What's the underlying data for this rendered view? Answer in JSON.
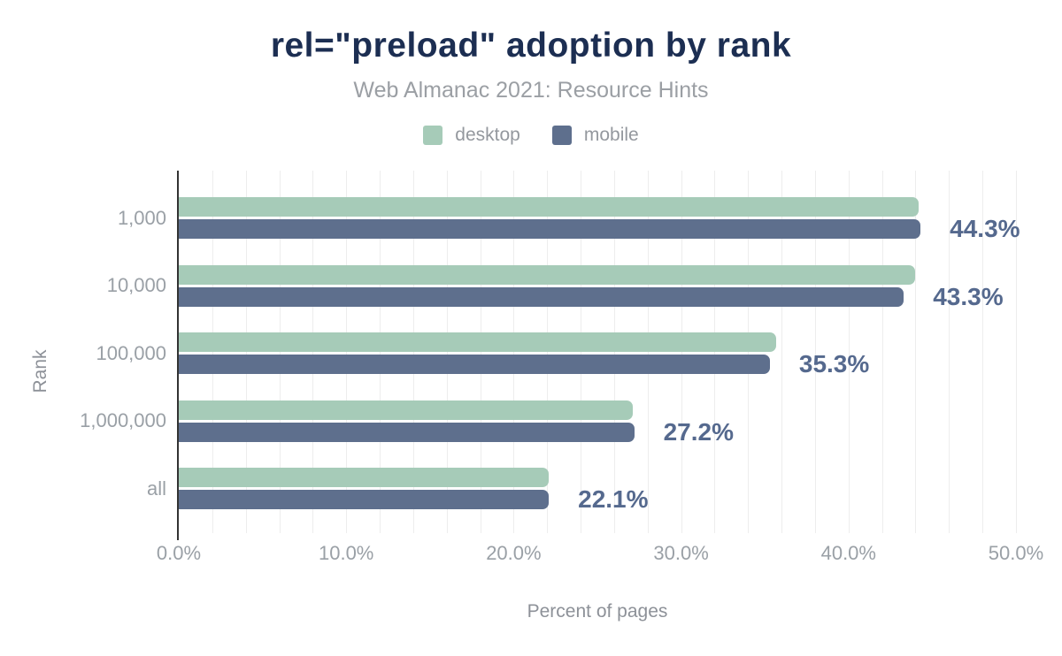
{
  "header": {
    "title": "rel=\"preload\" adoption by rank",
    "subtitle": "Web Almanac 2021: Resource Hints"
  },
  "legend": [
    {
      "label": "desktop",
      "color": "#a6cbb8"
    },
    {
      "label": "mobile",
      "color": "#5e6f8d"
    }
  ],
  "colors": {
    "title_text": "#1c2e52",
    "muted_text": "#9aa0a6",
    "axis_title_text": "#8d9198",
    "value_label_text": "#55698e",
    "axis_line": "#333333",
    "gridline": "#ededed",
    "desktop_bar": "#a6cbb8",
    "mobile_bar": "#5e6f8d"
  },
  "chart_data": {
    "type": "bar",
    "orientation": "horizontal",
    "title": "rel=\"preload\" adoption by rank",
    "subtitle": "Web Almanac 2021: Resource Hints",
    "categories": [
      "1,000",
      "10,000",
      "100,000",
      "1,000,000",
      "all"
    ],
    "series": [
      {
        "name": "desktop",
        "color": "#a6cbb8",
        "values": [
          44.2,
          44.0,
          35.7,
          27.1,
          22.1
        ]
      },
      {
        "name": "mobile",
        "color": "#5e6f8d",
        "values": [
          44.3,
          43.3,
          35.3,
          27.2,
          22.1
        ]
      }
    ],
    "value_labels": [
      "44.3%",
      "43.3%",
      "35.3%",
      "27.2%",
      "22.1%"
    ],
    "value_labels_series": "mobile",
    "xlabel": "Percent of pages",
    "ylabel": "Rank",
    "xlim": [
      0,
      50
    ],
    "x_ticks": [
      {
        "value": 0,
        "label": "0.0%"
      },
      {
        "value": 10,
        "label": "10.0%"
      },
      {
        "value": 20,
        "label": "20.0%"
      },
      {
        "value": 30,
        "label": "30.0%"
      },
      {
        "value": 40,
        "label": "40.0%"
      },
      {
        "value": 50,
        "label": "50.0%"
      }
    ],
    "grid_interval_percent": 2,
    "grid": true,
    "legend_position": "top"
  }
}
